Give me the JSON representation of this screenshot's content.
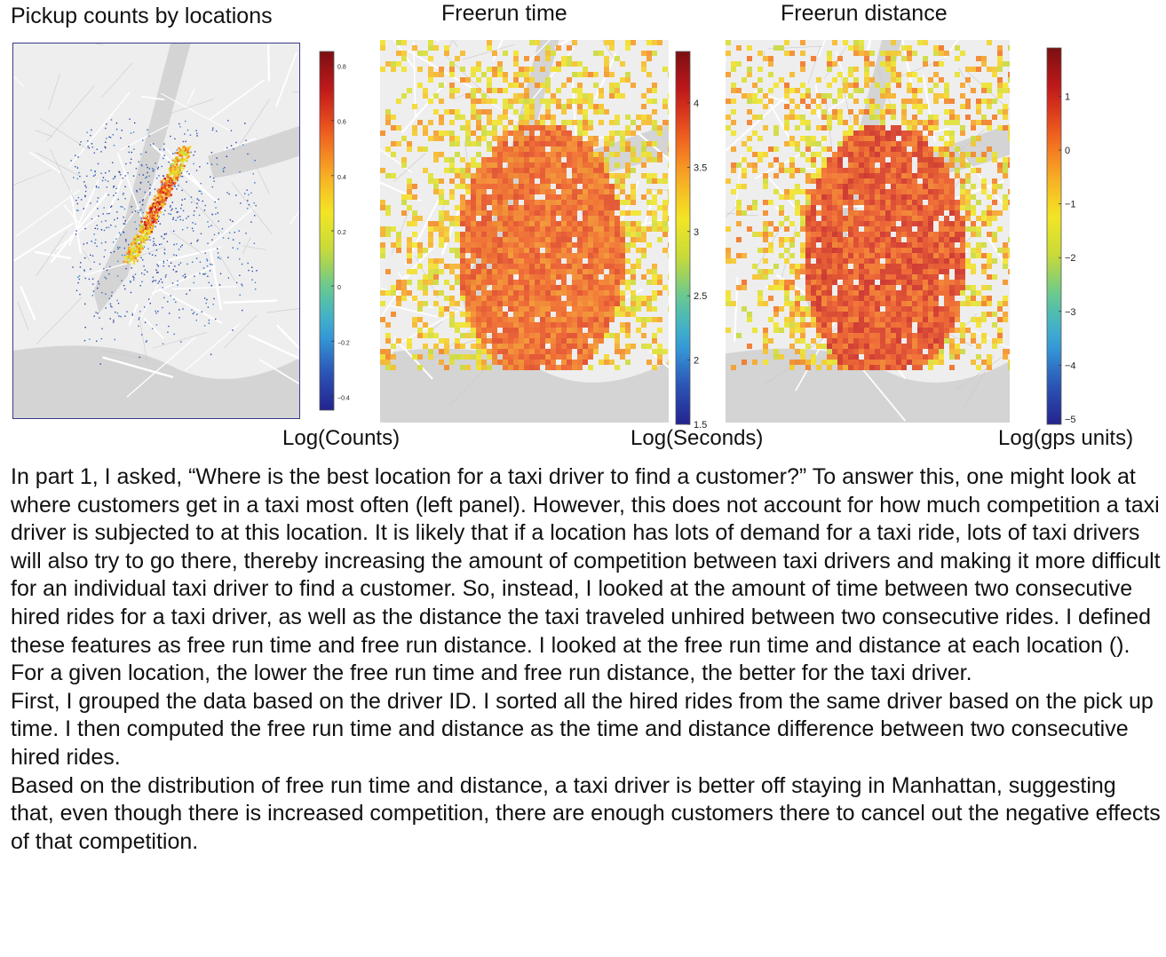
{
  "panels": [
    {
      "title": "Pickup counts by locations",
      "unit_label": "Log(Counts)",
      "colorbar": {
        "min": -0.45,
        "max": 0.85,
        "ticks": [
          "0.8",
          "0.6",
          "0.4",
          "0.2",
          "0",
          "−0.2",
          "−0.4"
        ],
        "tick_values": [
          0.8,
          0.6,
          0.4,
          0.2,
          0,
          -0.2,
          -0.4
        ]
      }
    },
    {
      "title": "Freerun time",
      "unit_label": "Log(Seconds)",
      "colorbar": {
        "min": 1.5,
        "max": 4.4,
        "ticks": [
          "4",
          "3.5",
          "3",
          "2.5",
          "2",
          "1.5"
        ],
        "tick_values": [
          4,
          3.5,
          3,
          2.5,
          2,
          1.5
        ]
      }
    },
    {
      "title": "Freerun distance",
      "unit_label": "Log(gps units)",
      "colorbar": {
        "min": -5.1,
        "max": 1.9,
        "ticks": [
          "1",
          "0",
          "−1",
          "−2",
          "−3",
          "−4",
          "−5"
        ],
        "tick_values": [
          1,
          0,
          -1,
          -2,
          -3,
          -4,
          -5
        ]
      }
    }
  ],
  "colors": {
    "colormap": [
      "#23238f",
      "#2c58b8",
      "#36a5dd",
      "#5ec79a",
      "#c6d93a",
      "#f4e624",
      "#f7a624",
      "#ef5a1f",
      "#c4191b",
      "#7b0f12"
    ],
    "water": "#d4d4d4",
    "land": "#eeeeee",
    "road": "#ffffff"
  },
  "paragraphs": [
    "In part 1, I asked, “Where is the best location for a taxi driver to find a customer?” To answer this, one might look at where customers get in a taxi most often (left panel). However, this does not account for how much competition a taxi driver is subjected to at this location. It is likely that if a location has lots of demand for a taxi ride, lots of taxi drivers will also try to go there, thereby increasing the amount of competition between taxi drivers and making it more difficult for an individual taxi driver to find a customer. So, instead, I looked at the amount of time between two consecutive hired rides for a taxi driver, as well as the distance the taxi traveled unhired between two consecutive rides. I defined these features as free run time and free run distance. I looked at the free run time and distance at each location (). For a given location, the lower the free run time and free run distance, the better for the taxi driver.",
    "First, I grouped the data based on the driver ID. I sorted all the hired rides from the same driver based on the pick up time. I then computed the free run time and distance as the time and distance difference between two consecutive hired rides.",
    "Based on the distribution of free run time and distance, a taxi driver is better off staying in Manhattan, suggesting that, even though there is increased competition, there are enough customers there to cancel out the negative effects of that competition."
  ],
  "chart_data": [
    {
      "type": "heatmap",
      "title": "Pickup counts by locations",
      "colorbar_label": "Log(Counts)",
      "colorbar_range": [
        -0.45,
        0.85
      ],
      "colorbar_ticks": [
        0.8,
        0.6,
        0.4,
        0.2,
        0,
        -0.2,
        -0.4
      ]
    },
    {
      "type": "heatmap",
      "title": "Freerun time",
      "colorbar_label": "Log(Seconds)",
      "colorbar_range": [
        1.5,
        4.4
      ],
      "colorbar_ticks": [
        4,
        3.5,
        3,
        2.5,
        2,
        1.5
      ]
    },
    {
      "type": "heatmap",
      "title": "Freerun distance",
      "colorbar_label": "Log(gps units)",
      "colorbar_range": [
        -5.1,
        1.9
      ],
      "colorbar_ticks": [
        1,
        0,
        -1,
        -2,
        -3,
        -4,
        -5
      ]
    }
  ]
}
